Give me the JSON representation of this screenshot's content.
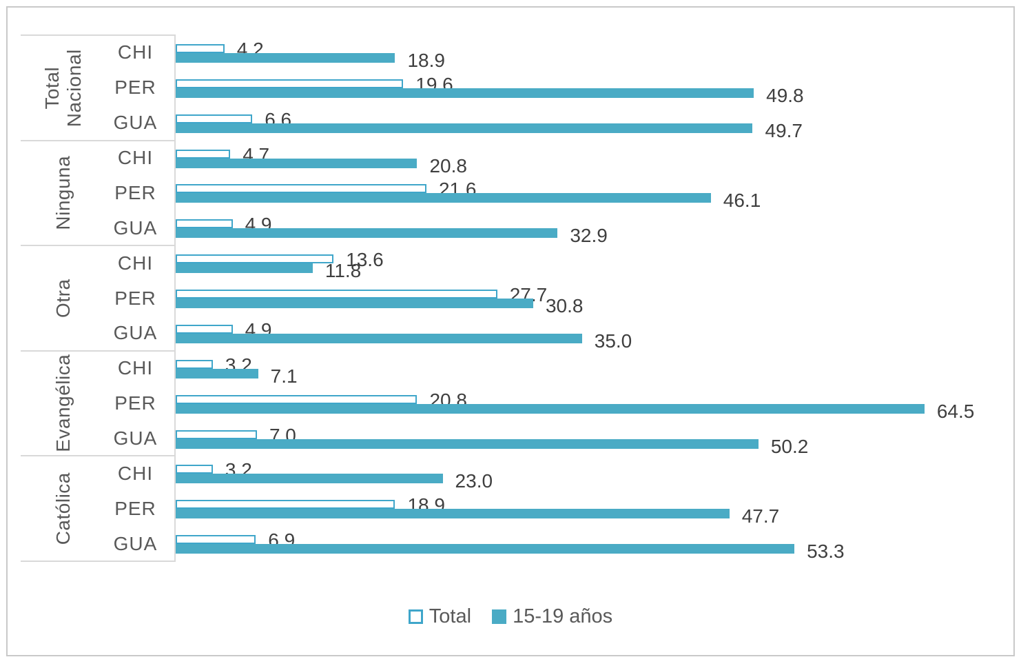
{
  "chart_data": {
    "type": "bar",
    "orientation": "horizontal",
    "title": "",
    "xlabel": "",
    "ylabel": "",
    "xlim": [
      0,
      71
    ],
    "grid": false,
    "legend_position": "bottom",
    "value_labels": "outside-end, one decimal",
    "series": [
      {
        "name": "Total",
        "style": "outline"
      },
      {
        "name": "15-19 años",
        "style": "fill"
      }
    ],
    "groups": [
      {
        "label": "Total Nacional",
        "rows": [
          {
            "country": "CHI",
            "Total": 4.2,
            "age_15_19": 18.9
          },
          {
            "country": "PER",
            "Total": 19.6,
            "age_15_19": 49.8
          },
          {
            "country": "GUA",
            "Total": 6.6,
            "age_15_19": 49.7
          }
        ]
      },
      {
        "label": "Ninguna",
        "rows": [
          {
            "country": "CHI",
            "Total": 4.7,
            "age_15_19": 20.8
          },
          {
            "country": "PER",
            "Total": 21.6,
            "age_15_19": 46.1
          },
          {
            "country": "GUA",
            "Total": 4.9,
            "age_15_19": 32.9
          }
        ]
      },
      {
        "label": "Otra",
        "rows": [
          {
            "country": "CHI",
            "Total": 13.6,
            "age_15_19": 11.8
          },
          {
            "country": "PER",
            "Total": 27.7,
            "age_15_19": 30.8
          },
          {
            "country": "GUA",
            "Total": 4.9,
            "age_15_19": 35.0
          }
        ]
      },
      {
        "label": "Evangélica",
        "rows": [
          {
            "country": "CHI",
            "Total": 3.2,
            "age_15_19": 7.1
          },
          {
            "country": "PER",
            "Total": 20.8,
            "age_15_19": 64.5
          },
          {
            "country": "GUA",
            "Total": 7.0,
            "age_15_19": 50.2
          }
        ]
      },
      {
        "label": "Católica",
        "rows": [
          {
            "country": "CHI",
            "Total": 3.2,
            "age_15_19": 23.0
          },
          {
            "country": "PER",
            "Total": 18.9,
            "age_15_19": 47.7
          },
          {
            "country": "GUA",
            "Total": 6.9,
            "age_15_19": 53.3
          }
        ]
      }
    ]
  },
  "legend": {
    "items": [
      {
        "label": "Total",
        "swatch": "outline"
      },
      {
        "label": "15-19 años",
        "swatch": "fill"
      }
    ]
  },
  "colors": {
    "teal_fill": "#4AABC5",
    "teal_outline": "#3FA6CA",
    "value_text": "#3F3F3F",
    "axis_text": "#595959",
    "grid_line": "#D9D9D9",
    "chart_border": "#C9C9C9",
    "background": "#FFFFFF"
  }
}
